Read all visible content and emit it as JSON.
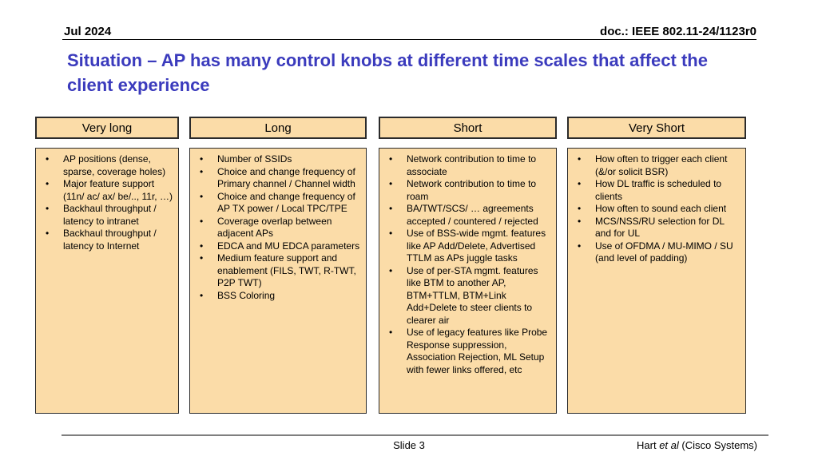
{
  "header": {
    "date": "Jul 2024",
    "doc_id": "doc.: IEEE 802.11-24/1123r0"
  },
  "title": "Situation – AP has many control knobs at different time scales that affect the client experience",
  "columns": [
    {
      "header": "Very long",
      "items": [
        "AP positions (dense, sparse, coverage holes)",
        "Major feature support (11n/ ac/ ax/ be/.., 11r, …)",
        "Backhaul throughput / latency to intranet",
        "Backhaul throughput / latency to Internet"
      ]
    },
    {
      "header": "Long",
      "items": [
        "Number of SSIDs",
        "Choice and change frequency of Primary channel / Channel width",
        "Choice and change frequency of AP TX power / Local TPC/TPE",
        "Coverage overlap between adjacent APs",
        "EDCA and MU EDCA parameters",
        "Medium feature support and enablement (FILS, TWT, R-TWT, P2P TWT)",
        "BSS Coloring"
      ]
    },
    {
      "header": "Short",
      "items": [
        "Network contribution to time to associate",
        "Network contribution to time to roam",
        "BA/TWT/SCS/ … agreements accepted / countered / rejected",
        "Use of BSS-wide mgmt. features like AP Add/Delete, Advertised TTLM as APs juggle tasks",
        "Use of per-STA mgmt. features like BTM to another AP, BTM+TTLM, BTM+Link Add+Delete to steer clients to clearer air",
        "Use of legacy features like Probe Response suppression, Association Rejection, ML Setup with fewer links offered, etc"
      ]
    },
    {
      "header": "Very Short",
      "items": [
        "How often to trigger each client (&/or solicit BSR)",
        "How DL traffic is scheduled to clients",
        "How often to sound each client",
        "MCS/NSS/RU selection for DL and for UL",
        "Use of OFDMA / MU-MIMO / SU (and level of padding)"
      ]
    }
  ],
  "footer": {
    "slide_number": "Slide 3",
    "attribution_pre": "Hart ",
    "attribution_italic": "et al",
    "attribution_post": " (Cisco Systems)"
  },
  "colors": {
    "title_text": "#3b3bbd",
    "box_fill": "#fbdca8",
    "box_border": "#2b2b2b",
    "footer_line": "#7f7f7f",
    "body_text": "#000000"
  }
}
